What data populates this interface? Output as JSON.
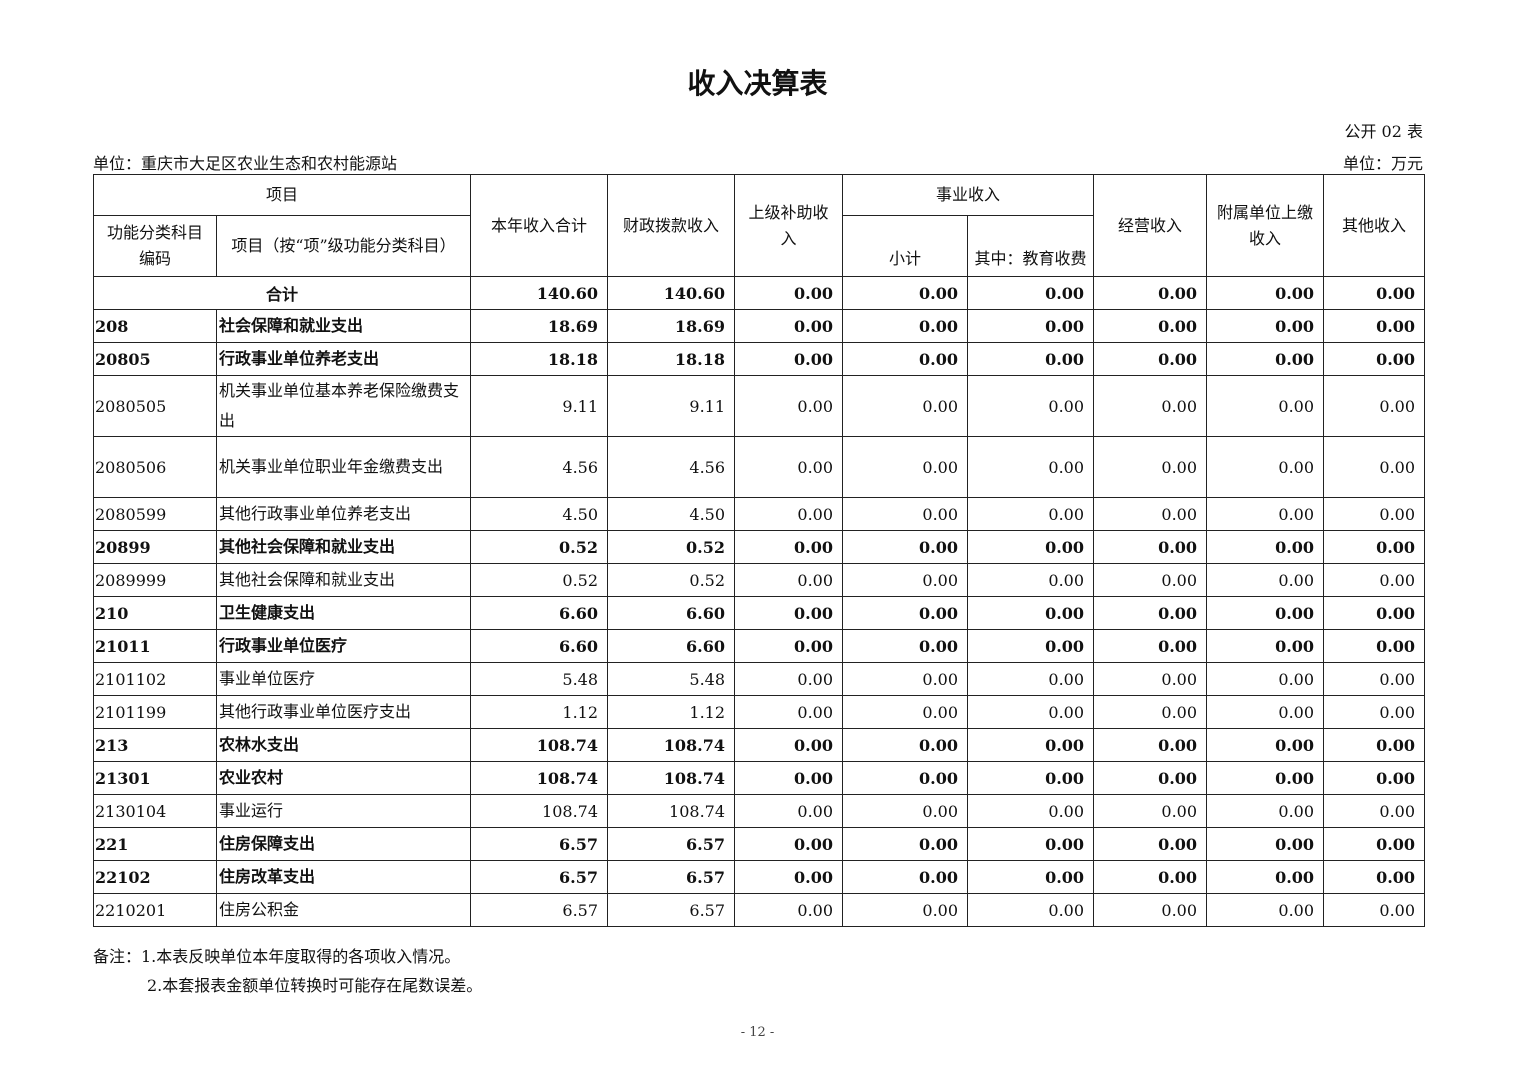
{
  "title": "收入决算表",
  "form_no": "公开 02 表",
  "unit_left": "单位：重庆市大足区农业生态和农村能源站",
  "unit_right": "单位：万元",
  "headers": {
    "project": "项目",
    "code": "功能分类科目编码",
    "name": "项目（按“项”级功能分类科目）",
    "total": "本年收入合计",
    "fiscal": "财政拨款收入",
    "superior": "上级补助收入",
    "business": "事业收入",
    "subtotal": "小计",
    "edu": "其中：教育收费",
    "operating": "经营收入",
    "affiliated": "附属单位上缴收入",
    "other": "其他收入"
  },
  "total_row": {
    "label": "合计",
    "values": [
      "140.60",
      "140.60",
      "0.00",
      "0.00",
      "0.00",
      "0.00",
      "0.00",
      "0.00"
    ]
  },
  "rows": [
    {
      "code": "208",
      "name": "社会保障和就业支出",
      "bold": true,
      "values": [
        "18.69",
        "18.69",
        "0.00",
        "0.00",
        "0.00",
        "0.00",
        "0.00",
        "0.00"
      ]
    },
    {
      "code": "20805",
      "name": "行政事业单位养老支出",
      "bold": true,
      "values": [
        "18.18",
        "18.18",
        "0.00",
        "0.00",
        "0.00",
        "0.00",
        "0.00",
        "0.00"
      ]
    },
    {
      "code": "2080505",
      "name": "机关事业单位基本养老保险缴费支出",
      "bold": false,
      "values": [
        "9.11",
        "9.11",
        "0.00",
        "0.00",
        "0.00",
        "0.00",
        "0.00",
        "0.00"
      ]
    },
    {
      "code": "2080506",
      "name": "机关事业单位职业年金缴费支出",
      "bold": false,
      "values": [
        "4.56",
        "4.56",
        "0.00",
        "0.00",
        "0.00",
        "0.00",
        "0.00",
        "0.00"
      ]
    },
    {
      "code": "2080599",
      "name": "其他行政事业单位养老支出",
      "bold": false,
      "values": [
        "4.50",
        "4.50",
        "0.00",
        "0.00",
        "0.00",
        "0.00",
        "0.00",
        "0.00"
      ]
    },
    {
      "code": "20899",
      "name": "其他社会保障和就业支出",
      "bold": true,
      "values": [
        "0.52",
        "0.52",
        "0.00",
        "0.00",
        "0.00",
        "0.00",
        "0.00",
        "0.00"
      ]
    },
    {
      "code": "2089999",
      "name": "其他社会保障和就业支出",
      "bold": false,
      "values": [
        "0.52",
        "0.52",
        "0.00",
        "0.00",
        "0.00",
        "0.00",
        "0.00",
        "0.00"
      ]
    },
    {
      "code": "210",
      "name": "卫生健康支出",
      "bold": true,
      "values": [
        "6.60",
        "6.60",
        "0.00",
        "0.00",
        "0.00",
        "0.00",
        "0.00",
        "0.00"
      ]
    },
    {
      "code": "21011",
      "name": "行政事业单位医疗",
      "bold": true,
      "values": [
        "6.60",
        "6.60",
        "0.00",
        "0.00",
        "0.00",
        "0.00",
        "0.00",
        "0.00"
      ]
    },
    {
      "code": "2101102",
      "name": "事业单位医疗",
      "bold": false,
      "values": [
        "5.48",
        "5.48",
        "0.00",
        "0.00",
        "0.00",
        "0.00",
        "0.00",
        "0.00"
      ]
    },
    {
      "code": "2101199",
      "name": "其他行政事业单位医疗支出",
      "bold": false,
      "values": [
        "1.12",
        "1.12",
        "0.00",
        "0.00",
        "0.00",
        "0.00",
        "0.00",
        "0.00"
      ]
    },
    {
      "code": "213",
      "name": "农林水支出",
      "bold": true,
      "values": [
        "108.74",
        "108.74",
        "0.00",
        "0.00",
        "0.00",
        "0.00",
        "0.00",
        "0.00"
      ]
    },
    {
      "code": "21301",
      "name": "农业农村",
      "bold": true,
      "values": [
        "108.74",
        "108.74",
        "0.00",
        "0.00",
        "0.00",
        "0.00",
        "0.00",
        "0.00"
      ]
    },
    {
      "code": "2130104",
      "name": "事业运行",
      "bold": false,
      "values": [
        "108.74",
        "108.74",
        "0.00",
        "0.00",
        "0.00",
        "0.00",
        "0.00",
        "0.00"
      ]
    },
    {
      "code": "221",
      "name": "住房保障支出",
      "bold": true,
      "values": [
        "6.57",
        "6.57",
        "0.00",
        "0.00",
        "0.00",
        "0.00",
        "0.00",
        "0.00"
      ]
    },
    {
      "code": "22102",
      "name": "住房改革支出",
      "bold": true,
      "values": [
        "6.57",
        "6.57",
        "0.00",
        "0.00",
        "0.00",
        "0.00",
        "0.00",
        "0.00"
      ]
    },
    {
      "code": "2210201",
      "name": "住房公积金",
      "bold": false,
      "values": [
        "6.57",
        "6.57",
        "0.00",
        "0.00",
        "0.00",
        "0.00",
        "0.00",
        "0.00"
      ]
    }
  ],
  "notes": [
    "备注：1.本表反映单位本年度取得的各项收入情况。",
    "2.本套报表金额单位转换时可能存在尾数误差。"
  ],
  "page_number": "- 12 -"
}
